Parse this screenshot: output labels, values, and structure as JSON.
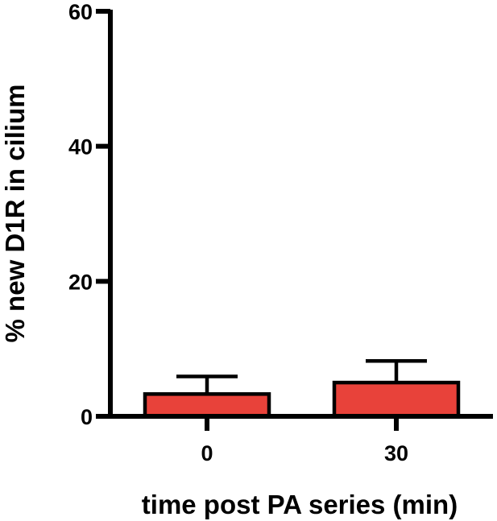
{
  "chart_data": {
    "type": "bar",
    "categories": [
      "0",
      "30"
    ],
    "values": [
      3.3,
      5.0
    ],
    "error_bars": [
      2.6,
      3.2
    ],
    "xlabel": "time post PA series (min)",
    "ylabel": "% new D1R in cilium",
    "ylim": [
      0,
      60
    ],
    "y_ticks": [
      0,
      20,
      40,
      60
    ],
    "y_tick_labels": [
      "0",
      "20",
      "40",
      "60"
    ],
    "grid": false,
    "legend": "none",
    "bar_color": "#e8423a",
    "bar_edge_color": "#000000",
    "axis_color": "#000000"
  }
}
